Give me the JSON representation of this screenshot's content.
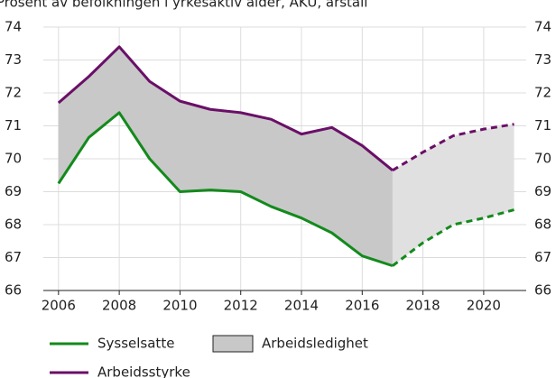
{
  "chart_data": {
    "type": "line",
    "subtitle": "Prosent av befolkningen i yrkesaktiv alder, AKU, årstall",
    "x": [
      2006,
      2007,
      2008,
      2009,
      2010,
      2011,
      2012,
      2013,
      2014,
      2015,
      2016,
      2017,
      2018,
      2019,
      2020,
      2021
    ],
    "series": [
      {
        "name": "Sysselsatte",
        "color": "#138a1c",
        "values": [
          69.25,
          70.65,
          71.4,
          70.0,
          69.0,
          69.05,
          69.0,
          68.55,
          68.2,
          67.75,
          67.05,
          66.75,
          67.45,
          68.0,
          68.2,
          68.45
        ]
      },
      {
        "name": "Arbeidsstyrke",
        "color": "#6a0f68",
        "values": [
          71.7,
          72.5,
          73.4,
          72.35,
          71.75,
          71.5,
          71.4,
          71.2,
          70.75,
          70.95,
          70.4,
          69.65,
          70.2,
          70.7,
          70.9,
          71.05
        ]
      }
    ],
    "band": {
      "name": "Arbeidsledighet",
      "color": "#c8c8c8",
      "forecast_color": "#e0e0e0"
    },
    "forecast_from": 2017,
    "xlim": [
      2005.5,
      2021.4
    ],
    "xticks": [
      2006,
      2008,
      2010,
      2012,
      2014,
      2016,
      2018,
      2020
    ],
    "ylim": [
      66,
      74
    ],
    "yticks": [
      66,
      67,
      68,
      69,
      70,
      71,
      72,
      73,
      74
    ],
    "y2lim": [
      66,
      74
    ],
    "y2ticks": [
      66,
      67,
      68,
      69,
      70,
      71,
      72,
      73,
      74
    ],
    "grid": true
  }
}
